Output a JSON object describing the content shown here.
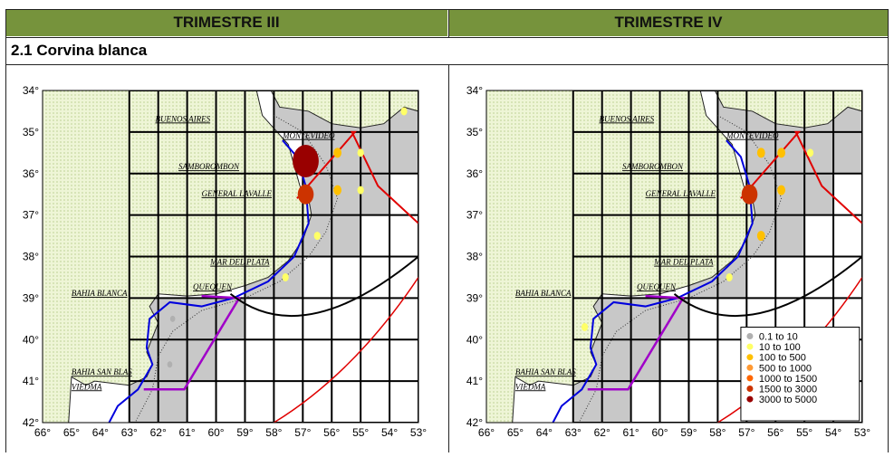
{
  "header": {
    "left_title": "TRIMESTRE III",
    "right_title": "TRIMESTRE IV",
    "header_color": "#76933c"
  },
  "section": {
    "label": "2.1 Corvina blanca"
  },
  "axes": {
    "lat_labels": [
      "34°",
      "35°",
      "36°",
      "37°",
      "38°",
      "39°",
      "40°",
      "41°",
      "42°"
    ],
    "lon_labels": [
      "66°",
      "65°",
      "64°",
      "63°",
      "62°",
      "61°",
      "60°",
      "59°",
      "58°",
      "57°",
      "56°",
      "55°",
      "54°",
      "53°"
    ]
  },
  "places": {
    "buenos_aires": "BUENOS AIRES",
    "montevideo": "MONTEVIDEO",
    "samborombon": "SAMBOROMBON",
    "general_lavalle": "GENERAL LAVALLE",
    "mar_del_plata": "MAR DEL PLATA",
    "quequen": "QUEQUEN",
    "bahia_blanca": "BAHIA BLANCA",
    "bahia_san_blas": "BAHIA SAN BLAS",
    "viedma": "VIEDMA"
  },
  "colors": {
    "land": "#eef5d6",
    "grid_cell_sampled": "#c8c8c8",
    "boundary_red": "#e00000",
    "boundary_blue": "#0000dd",
    "boundary_purple": "#a000c8"
  },
  "legend": {
    "title": "",
    "entries": [
      {
        "label": "0.1  to  10",
        "color": "#b0b0b0"
      },
      {
        "label": "10  to  100",
        "color": "#ffff66"
      },
      {
        "label": "100  to  500",
        "color": "#ffc000"
      },
      {
        "label": "500  to  1000",
        "color": "#ff9933"
      },
      {
        "label": "1000  to  1500",
        "color": "#ff6600"
      },
      {
        "label": "1500  to  3000",
        "color": "#cc3300"
      },
      {
        "label": "3000  to  5000",
        "color": "#990000"
      }
    ]
  },
  "map_data": {
    "trimestre_iii": [
      {
        "lon": -56.9,
        "lat": -35.7,
        "class": 6
      },
      {
        "lon": -56.9,
        "lat": -36.5,
        "class": 5
      },
      {
        "lon": -55.8,
        "lat": -35.5,
        "class": 2
      },
      {
        "lon": -55.0,
        "lat": -35.5,
        "class": 1
      },
      {
        "lon": -55.8,
        "lat": -36.4,
        "class": 2
      },
      {
        "lon": -55.0,
        "lat": -36.4,
        "class": 1
      },
      {
        "lon": -56.5,
        "lat": -37.5,
        "class": 1
      },
      {
        "lon": -53.5,
        "lat": -34.5,
        "class": 1
      },
      {
        "lon": -57.6,
        "lat": -38.5,
        "class": 1
      },
      {
        "lon": -61.5,
        "lat": -39.5,
        "class": 0
      },
      {
        "lon": -61.6,
        "lat": -40.6,
        "class": 0
      }
    ],
    "trimestre_iv": [
      {
        "lon": -56.9,
        "lat": -36.5,
        "class": 5
      },
      {
        "lon": -56.5,
        "lat": -35.5,
        "class": 2
      },
      {
        "lon": -55.8,
        "lat": -35.5,
        "class": 2
      },
      {
        "lon": -54.8,
        "lat": -35.5,
        "class": 1
      },
      {
        "lon": -55.8,
        "lat": -36.4,
        "class": 2
      },
      {
        "lon": -56.5,
        "lat": -37.5,
        "class": 2
      },
      {
        "lon": -57.6,
        "lat": -38.5,
        "class": 1
      },
      {
        "lon": -62.6,
        "lat": -39.7,
        "class": 1
      }
    ]
  }
}
